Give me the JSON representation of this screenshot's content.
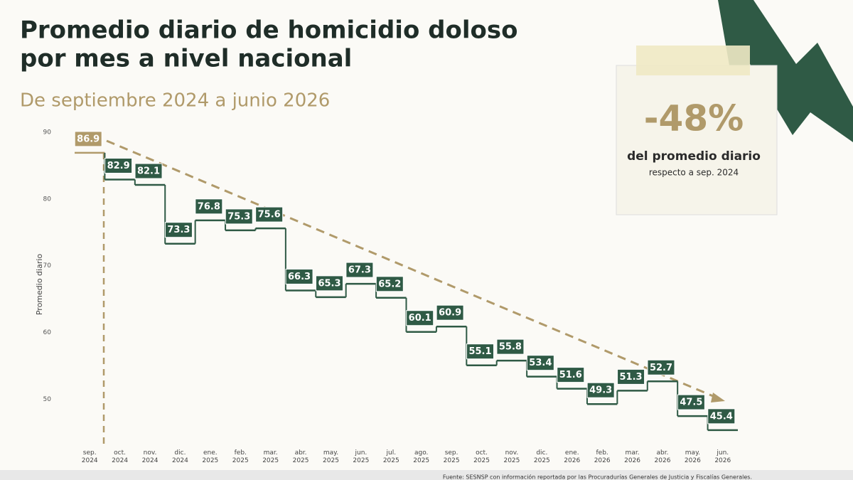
{
  "chart_data": {
    "type": "step",
    "title_lines": [
      "Promedio diario de homicidio doloso",
      "por mes a nivel nacional"
    ],
    "subtitle": "De septiembre 2024 a junio 2026",
    "y_label": "Promedio diario",
    "categories": [
      "sep. 2024",
      "oct. 2024",
      "nov. 2024",
      "dic. 2024",
      "ene. 2025",
      "feb. 2025",
      "mar. 2025",
      "abr. 2025",
      "may. 2025",
      "jun. 2025",
      "jul. 2025",
      "ago. 2025",
      "sep. 2025",
      "oct. 2025",
      "nov. 2025",
      "dic. 2025",
      "ene. 2026",
      "feb. 2026",
      "mar. 2026",
      "abr. 2026",
      "may. 2026",
      "jun. 2026"
    ],
    "values": [
      86.9,
      82.9,
      82.1,
      73.3,
      76.8,
      75.3,
      75.6,
      66.3,
      65.3,
      67.3,
      65.2,
      60.1,
      60.9,
      55.1,
      55.8,
      53.4,
      51.6,
      49.3,
      51.3,
      52.7,
      47.5,
      45.4
    ],
    "color": "#2f5a45",
    "first_color": "#b09a6a",
    "ylim": [
      44,
      92
    ],
    "yticks": [
      50,
      60,
      70,
      80,
      90
    ],
    "callout": {
      "big": "-48%",
      "line1": "del promedio diario",
      "line2": "respecto a sep. 2024"
    },
    "source": "Fuente: SESNSP con información reportada por las Procuradurías Generales de Justicia y Fiscalías Generales."
  }
}
